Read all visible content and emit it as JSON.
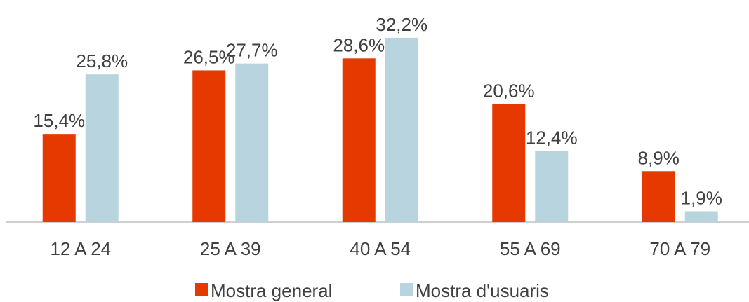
{
  "chart_data": {
    "type": "bar",
    "categories": [
      "12 A 24",
      "25 A 39",
      "40 A 54",
      "55 A 69",
      "70 A 79"
    ],
    "series": [
      {
        "name": "Mostra general",
        "color": "#e63900",
        "values": [
          15.4,
          26.5,
          28.6,
          20.6,
          8.9
        ],
        "value_labels": [
          "15,4%",
          "26,5%",
          "28,6%",
          "20,6%",
          "8,9%"
        ]
      },
      {
        "name": "Mostra d'usuaris",
        "color": "#b8d4df",
        "values": [
          25.8,
          27.7,
          32.2,
          12.4,
          1.9
        ],
        "value_labels": [
          "25,8%",
          "27,7%",
          "32,2%",
          "12,4%",
          "1,9%"
        ]
      }
    ],
    "ylim": [
      0,
      35
    ],
    "legend": "bottom"
  }
}
